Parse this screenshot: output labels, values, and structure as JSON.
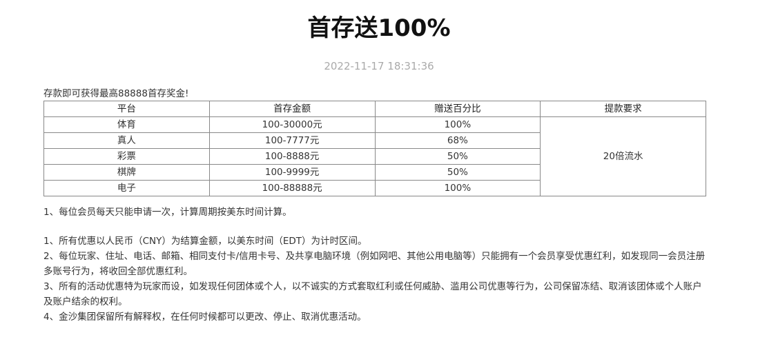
{
  "title": "首存送100%",
  "date": "2022-11-17 18:31:36",
  "intro": "存款即可获得最高88888首存奖金!",
  "table": {
    "headers": [
      "平台",
      "首存金额",
      "赠送百分比",
      "提款要求"
    ],
    "rows": [
      {
        "platform": "体育",
        "amount": "100-30000元",
        "percent": "100%"
      },
      {
        "platform": "真人",
        "amount": "100-7777元",
        "percent": "68%"
      },
      {
        "platform": "彩票",
        "amount": "100-8888元",
        "percent": "50%"
      },
      {
        "platform": "棋牌",
        "amount": "100-9999元",
        "percent": "50%"
      },
      {
        "platform": "电子",
        "amount": "100-88888元",
        "percent": "100%"
      }
    ],
    "requirement": "20倍流水"
  },
  "rules": {
    "note": "1、每位会员每天只能申请一次，计算周期按美东时间计算。",
    "items": [
      "1、所有优惠以人民币（CNY）为结算金额，以美东时间（EDT）为计时区间。",
      "2、每位玩家、住址、电话、邮箱、相同支付卡/信用卡号、及共享电脑环境（例如网吧、其他公用电脑等）只能拥有一个会员享受优惠红利，如发现同一会员注册多账号行为，将收回全部优惠红利。",
      "3、所有的活动优惠特为玩家而设，如发现任何团体或个人，以不诚实的方式套取红利或任何威胁、滥用公司优惠等行为，公司保留冻结、取消该团体或个人账户及账户结余的权利。",
      "4、金沙集团保留所有解释权，在任何时候都可以更改、停止、取消优惠活动。"
    ]
  }
}
